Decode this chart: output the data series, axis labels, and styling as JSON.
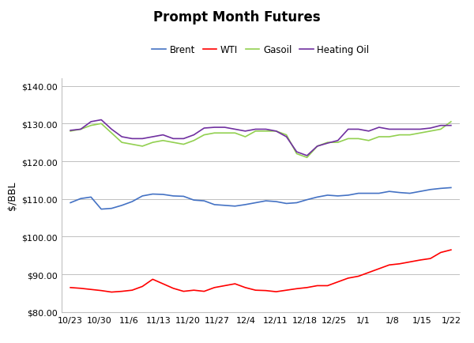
{
  "title": "Prompt Month Futures",
  "ylabel": "$/BBL",
  "ylim": [
    80,
    142
  ],
  "yticks": [
    80,
    90,
    100,
    110,
    120,
    130,
    140
  ],
  "xtick_labels": [
    "10/23",
    "10/30",
    "11/6",
    "11/13",
    "11/20",
    "11/27",
    "12/4",
    "12/11",
    "12/18",
    "12/25",
    "1/1",
    "1/8",
    "1/15",
    "1/22"
  ],
  "legend": [
    "Brent",
    "WTI",
    "Gasoil",
    "Heating Oil"
  ],
  "colors": {
    "Brent": "#4472C4",
    "WTI": "#FF0000",
    "Gasoil": "#92D050",
    "Heating Oil": "#7030A0"
  },
  "Brent": [
    109.0,
    110.1,
    110.5,
    107.3,
    107.5,
    108.3,
    109.3,
    110.8,
    111.3,
    111.2,
    110.8,
    110.7,
    109.7,
    109.5,
    108.5,
    108.3,
    108.1,
    108.5,
    109.0,
    109.5,
    109.3,
    108.8,
    109.0,
    109.8,
    110.5,
    111.0,
    110.8,
    111.0,
    111.5,
    111.5,
    111.5,
    112.0,
    111.7,
    111.5,
    112.0,
    112.5,
    112.8,
    113.0
  ],
  "WTI": [
    86.5,
    86.3,
    86.0,
    85.7,
    85.3,
    85.5,
    85.8,
    86.8,
    88.7,
    87.5,
    86.3,
    85.5,
    85.8,
    85.5,
    86.5,
    87.0,
    87.5,
    86.5,
    85.8,
    85.7,
    85.4,
    85.8,
    86.2,
    86.5,
    87.0,
    87.0,
    88.0,
    89.0,
    89.5,
    90.5,
    91.5,
    92.5,
    92.8,
    93.3,
    93.8,
    94.2,
    95.8,
    96.5
  ],
  "Gasoil": [
    128.0,
    128.5,
    129.5,
    130.0,
    127.5,
    125.0,
    124.5,
    124.0,
    125.0,
    125.5,
    125.0,
    124.5,
    125.5,
    127.0,
    127.5,
    127.5,
    127.5,
    126.5,
    128.0,
    128.0,
    128.0,
    127.0,
    122.0,
    121.0,
    124.0,
    125.0,
    125.0,
    126.0,
    126.0,
    125.5,
    126.5,
    126.5,
    127.0,
    127.0,
    127.5,
    128.0,
    128.5,
    130.5
  ],
  "Heating Oil": [
    128.2,
    128.5,
    130.5,
    131.0,
    128.5,
    126.5,
    126.0,
    126.0,
    126.5,
    127.0,
    126.0,
    126.0,
    127.0,
    128.8,
    129.0,
    129.0,
    128.5,
    128.0,
    128.5,
    128.5,
    128.0,
    126.5,
    122.5,
    121.5,
    124.0,
    124.8,
    125.5,
    128.5,
    128.5,
    128.0,
    129.0,
    128.5,
    128.5,
    128.5,
    128.5,
    128.8,
    129.5,
    129.5
  ],
  "background_color": "#FFFFFF",
  "grid_color": "#C0C0C0",
  "linewidth": 1.2,
  "title_fontsize": 12,
  "legend_fontsize": 8.5,
  "tick_fontsize": 8,
  "ylabel_fontsize": 9
}
